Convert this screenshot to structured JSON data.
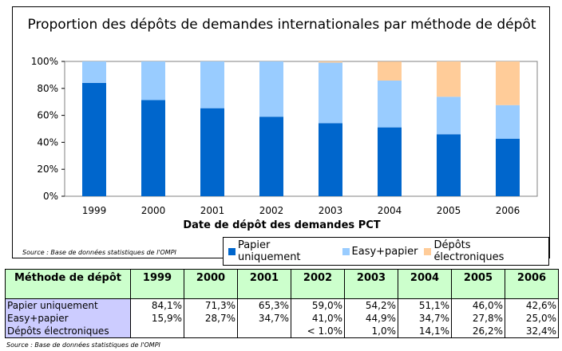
{
  "chart_data": {
    "type": "bar",
    "stacked": true,
    "title": "Proportion des dépôts de demandes internationales  par méthode de dépôt",
    "xlabel": "Date de dépôt des demandes PCT",
    "ylabel": "",
    "ylim": [
      0,
      100
    ],
    "yticks": [
      "0%",
      "20%",
      "40%",
      "60%",
      "80%",
      "100%"
    ],
    "categories": [
      "1999",
      "2000",
      "2001",
      "2002",
      "2003",
      "2004",
      "2005",
      "2006"
    ],
    "series": [
      {
        "name": "Papier uniquement",
        "color": "#0066CC",
        "values": [
          84.1,
          71.3,
          65.3,
          59.0,
          54.2,
          51.1,
          46.0,
          42.6
        ]
      },
      {
        "name": "Easy+papier",
        "color": "#99CCFF",
        "values": [
          15.9,
          28.7,
          34.7,
          41.0,
          44.9,
          34.7,
          27.8,
          25.0
        ]
      },
      {
        "name": "Dépôts électroniques",
        "color": "#FFCC99",
        "values": [
          0,
          0,
          0,
          0,
          1.0,
          14.1,
          26.2,
          32.4
        ]
      }
    ],
    "legend": "bottom-right",
    "grid": false,
    "source": "Source : Base de données statistiques de l'OMPI"
  },
  "table": {
    "header": [
      "Méthode de dépôt",
      "1999",
      "2000",
      "2001",
      "2002",
      "2003",
      "2004",
      "2005",
      "2006"
    ],
    "rows": [
      {
        "label": "Papier uniquement",
        "cells": [
          "84,1%",
          "71,3%",
          "65,3%",
          "59,0%",
          "54,2%",
          "51,1%",
          "46,0%",
          "42,6%"
        ]
      },
      {
        "label": "Easy+papier",
        "cells": [
          "15,9%",
          "28,7%",
          "34,7%",
          "41,0%",
          "44,9%",
          "34,7%",
          "27,8%",
          "25,0%"
        ]
      },
      {
        "label": "Dépôts électroniques",
        "cells": [
          "",
          "",
          "",
          "< 1.0%",
          "1,0%",
          "14,1%",
          "26,2%",
          "32,4%"
        ]
      }
    ],
    "source": "Source : Base de données statistiques de l'OMPI"
  }
}
